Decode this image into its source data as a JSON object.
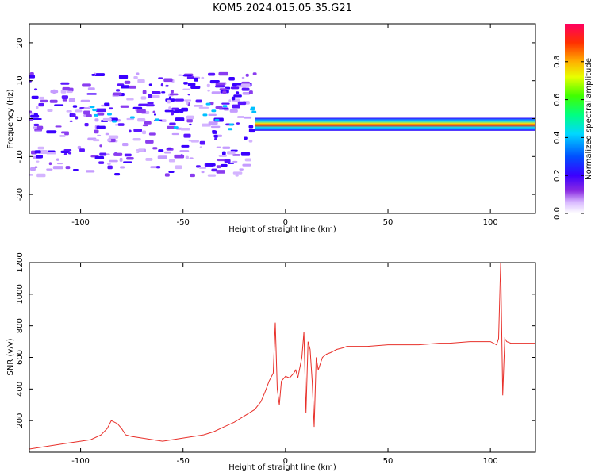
{
  "figure": {
    "title": "KOM5.2024.015.05.35.G21"
  },
  "colors": {
    "snr_line": "#e8302a",
    "axis": "#000000",
    "background": "#ffffff"
  },
  "chart_data": [
    {
      "type": "heatmap",
      "title": "",
      "xlabel": "Height of straight line (km)",
      "ylabel": "Frequency (Hz)",
      "xlim": [
        -125,
        122
      ],
      "ylim": [
        -25,
        25
      ],
      "x_ticks": [
        -100,
        -50,
        0,
        50,
        100
      ],
      "y_ticks": [
        -20,
        -10,
        0,
        10,
        20
      ],
      "grid": false,
      "colorbar": {
        "label": "Normalized spectral amplitude",
        "range": [
          0,
          1
        ],
        "ticks": [
          0.0,
          0.2,
          0.4,
          0.6,
          0.8
        ],
        "colormap": "rainbow (violet to red)"
      },
      "features": [
        {
          "description": "scattered low-amplitude patches",
          "x_range": [
            -125,
            -15
          ],
          "y_range": [
            -15,
            12
          ],
          "amplitude": 0.1
        },
        {
          "description": "narrow strong tone near -2 Hz",
          "x_range": [
            -15,
            122
          ],
          "y_range": [
            -3,
            0
          ],
          "amplitude": 0.9
        }
      ]
    },
    {
      "type": "line",
      "title": "",
      "xlabel": "Height of straight line (km)",
      "ylabel": "SNR (v/v)",
      "xlim": [
        -125,
        122
      ],
      "ylim": [
        0,
        1200
      ],
      "x_ticks": [
        -100,
        -50,
        0,
        50,
        100
      ],
      "y_ticks": [
        200,
        400,
        600,
        800,
        1000,
        1200
      ],
      "grid": false,
      "series": [
        {
          "color": "#e8302a",
          "x": [
            -125,
            -120,
            -115,
            -110,
            -105,
            -100,
            -95,
            -90,
            -87,
            -85,
            -82,
            -80,
            -78,
            -75,
            -70,
            -65,
            -60,
            -55,
            -50,
            -45,
            -40,
            -35,
            -30,
            -25,
            -20,
            -15,
            -12,
            -10,
            -8,
            -6,
            -5,
            -4,
            -3,
            -2,
            0,
            2,
            4,
            5,
            6,
            8,
            9,
            10,
            11,
            12,
            13,
            14,
            15,
            16,
            18,
            20,
            22,
            25,
            28,
            30,
            35,
            40,
            45,
            50,
            55,
            60,
            65,
            70,
            75,
            80,
            85,
            90,
            95,
            100,
            103,
            104,
            105,
            106,
            107,
            108,
            110,
            115,
            122
          ],
          "y": [
            20,
            30,
            40,
            50,
            60,
            70,
            80,
            110,
            150,
            200,
            180,
            150,
            110,
            100,
            90,
            80,
            70,
            80,
            90,
            100,
            110,
            130,
            160,
            190,
            230,
            270,
            320,
            380,
            450,
            500,
            820,
            400,
            300,
            450,
            480,
            470,
            500,
            520,
            470,
            600,
            760,
            250,
            700,
            650,
            450,
            160,
            600,
            520,
            600,
            620,
            630,
            650,
            660,
            670,
            670,
            670,
            675,
            680,
            680,
            680,
            680,
            685,
            690,
            690,
            695,
            700,
            700,
            700,
            680,
            720,
            1200,
            360,
            720,
            700,
            690,
            690,
            690
          ]
        }
      ]
    }
  ]
}
